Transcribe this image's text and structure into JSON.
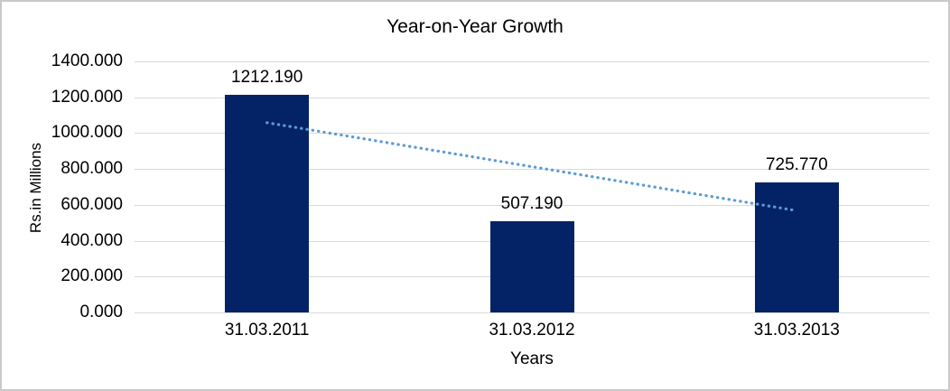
{
  "chart_data": {
    "type": "bar",
    "title": "Year-on-Year Growth",
    "xlabel": "Years",
    "ylabel": "Rs.in Millions",
    "categories": [
      "31.03.2011",
      "31.03.2012",
      "31.03.2013"
    ],
    "values": [
      1212.19,
      507.19,
      725.77
    ],
    "value_labels": [
      "1212.190",
      "507.190",
      "725.770"
    ],
    "ylim": [
      0,
      1400
    ],
    "ytick_step": 200,
    "ytick_labels": [
      "0.000",
      "200.000",
      "400.000",
      "600.000",
      "800.000",
      "1000.000",
      "1200.000",
      "1400.000"
    ],
    "grid": "horizontal",
    "legend": "none",
    "trendline": {
      "kind": "linear-dotted",
      "start_value": 1058.3,
      "end_value": 571.8,
      "color": "#5b9bd5"
    },
    "colors": {
      "bar": "#042366",
      "gridline": "#d9d9d9",
      "text": "#000000",
      "frame_border": "#c9c9c9",
      "background": "#ffffff"
    }
  }
}
